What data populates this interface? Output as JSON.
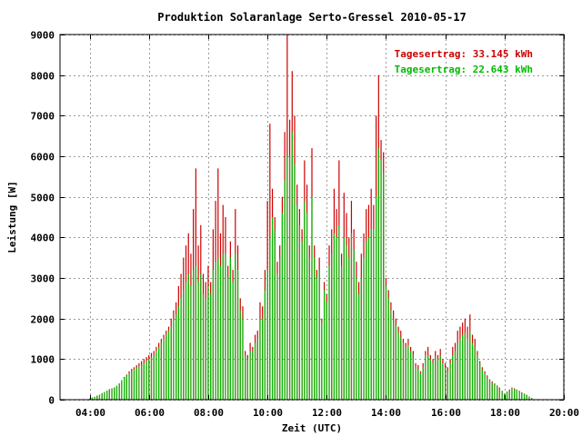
{
  "chart_data": {
    "type": "bar",
    "title": "Produktion Solaranlage Serto-Gressel 2010-05-17",
    "xlabel": "Zeit (UTC)",
    "ylabel": "Leistung [W]",
    "xlim": [
      3.0,
      20.0
    ],
    "ylim": [
      0,
      9000
    ],
    "xticks": [
      4,
      6,
      8,
      10,
      12,
      14,
      16,
      18,
      20
    ],
    "xtick_labels": [
      "04:00",
      "06:00",
      "08:00",
      "10:00",
      "12:00",
      "14:00",
      "16:00",
      "18:00",
      "20:00"
    ],
    "yticks": [
      0,
      1000,
      2000,
      3000,
      4000,
      5000,
      6000,
      7000,
      8000,
      9000
    ],
    "ytick_labels": [
      "0",
      "1000",
      "2000",
      "3000",
      "4000",
      "5000",
      "6000",
      "7000",
      "8000",
      "9000"
    ],
    "grid": true,
    "legend_position": "top-right",
    "bar_interval_minutes": 5,
    "series": [
      {
        "legend": "Tagesertrag: 33.145 kWh",
        "color": "#cc0000",
        "x_start": 4.0,
        "values": [
          30,
          50,
          70,
          100,
          120,
          160,
          190,
          220,
          260,
          280,
          300,
          340,
          400,
          480,
          560,
          620,
          700,
          760,
          800,
          850,
          900,
          950,
          1000,
          1050,
          1100,
          1150,
          1200,
          1300,
          1400,
          1500,
          1600,
          1700,
          1800,
          2000,
          2200,
          2400,
          2800,
          3100,
          3500,
          3800,
          4100,
          3600,
          4700,
          5700,
          3800,
          4300,
          3100,
          2900,
          3300,
          2900,
          4200,
          4900,
          5700,
          4100,
          4800,
          4500,
          3300,
          3900,
          3200,
          4700,
          3800,
          2500,
          2300,
          1200,
          1100,
          1400,
          1300,
          1600,
          1700,
          2400,
          2300,
          3200,
          4900,
          6800,
          5200,
          4500,
          3400,
          3800,
          5000,
          6600,
          9000,
          6900,
          8100,
          7000,
          5300,
          4700,
          4200,
          5900,
          5300,
          3800,
          6200,
          3800,
          3200,
          3500,
          2000,
          2900,
          2600,
          3800,
          4200,
          5200,
          4700,
          5900,
          3600,
          5100,
          4600,
          4000,
          4900,
          4200,
          3400,
          2900,
          3600,
          4100,
          4700,
          4800,
          5200,
          4800,
          7000,
          8000,
          6400,
          6100,
          3000,
          2700,
          2400,
          2200,
          2000,
          1800,
          1700,
          1500,
          1400,
          1500,
          1300,
          1200,
          900,
          850,
          700,
          900,
          1200,
          1300,
          1100,
          1000,
          1200,
          1100,
          1250,
          1000,
          900,
          800,
          1000,
          1300,
          1400,
          1700,
          1800,
          1900,
          2000,
          1800,
          2100,
          1600,
          1500,
          1200,
          950,
          800,
          700,
          600,
          500,
          450,
          400,
          350,
          300,
          220,
          150,
          200,
          250,
          300,
          280,
          250,
          220,
          180,
          150,
          120,
          80,
          40
        ]
      },
      {
        "legend": "Tagesertrag: 22.643 kWh",
        "color": "#00bb00",
        "x_start": 4.0,
        "values": [
          30,
          50,
          70,
          100,
          120,
          160,
          190,
          220,
          260,
          280,
          300,
          340,
          400,
          480,
          540,
          600,
          650,
          700,
          740,
          780,
          820,
          860,
          900,
          950,
          1000,
          1050,
          1100,
          1200,
          1300,
          1400,
          1500,
          1600,
          1700,
          1800,
          2000,
          2100,
          2300,
          2500,
          2700,
          2900,
          3100,
          2800,
          3200,
          3300,
          2900,
          3100,
          2600,
          2500,
          2800,
          2600,
          3200,
          3400,
          3500,
          3300,
          3600,
          3600,
          3000,
          3500,
          2900,
          3600,
          3200,
          2200,
          2000,
          1100,
          1000,
          1200,
          1200,
          1400,
          1500,
          2000,
          2000,
          2700,
          3200,
          4000,
          4500,
          4200,
          3100,
          3500,
          4600,
          5400,
          6000,
          6000,
          6600,
          5800,
          4800,
          4300,
          3900,
          4900,
          4600,
          3500,
          5000,
          3500,
          3000,
          3200,
          1900,
          2700,
          2400,
          3300,
          3600,
          4100,
          4000,
          4300,
          3300,
          4000,
          3800,
          3500,
          4100,
          3700,
          3000,
          2600,
          3000,
          3500,
          3900,
          4000,
          4200,
          4200,
          5000,
          6200,
          5900,
          5600,
          2800,
          2500,
          2200,
          2000,
          1850,
          1650,
          1550,
          1400,
          1300,
          1350,
          1200,
          1100,
          800,
          750,
          650,
          800,
          1100,
          1100,
          1000,
          900,
          1050,
          1000,
          1100,
          900,
          800,
          700,
          900,
          1100,
          1200,
          1400,
          1500,
          1600,
          1650,
          1500,
          1700,
          1400,
          1300,
          1100,
          900,
          750,
          650,
          560,
          470,
          420,
          370,
          330,
          280,
          210,
          140,
          190,
          240,
          280,
          260,
          240,
          210,
          170,
          140,
          110,
          75,
          40
        ]
      }
    ]
  }
}
